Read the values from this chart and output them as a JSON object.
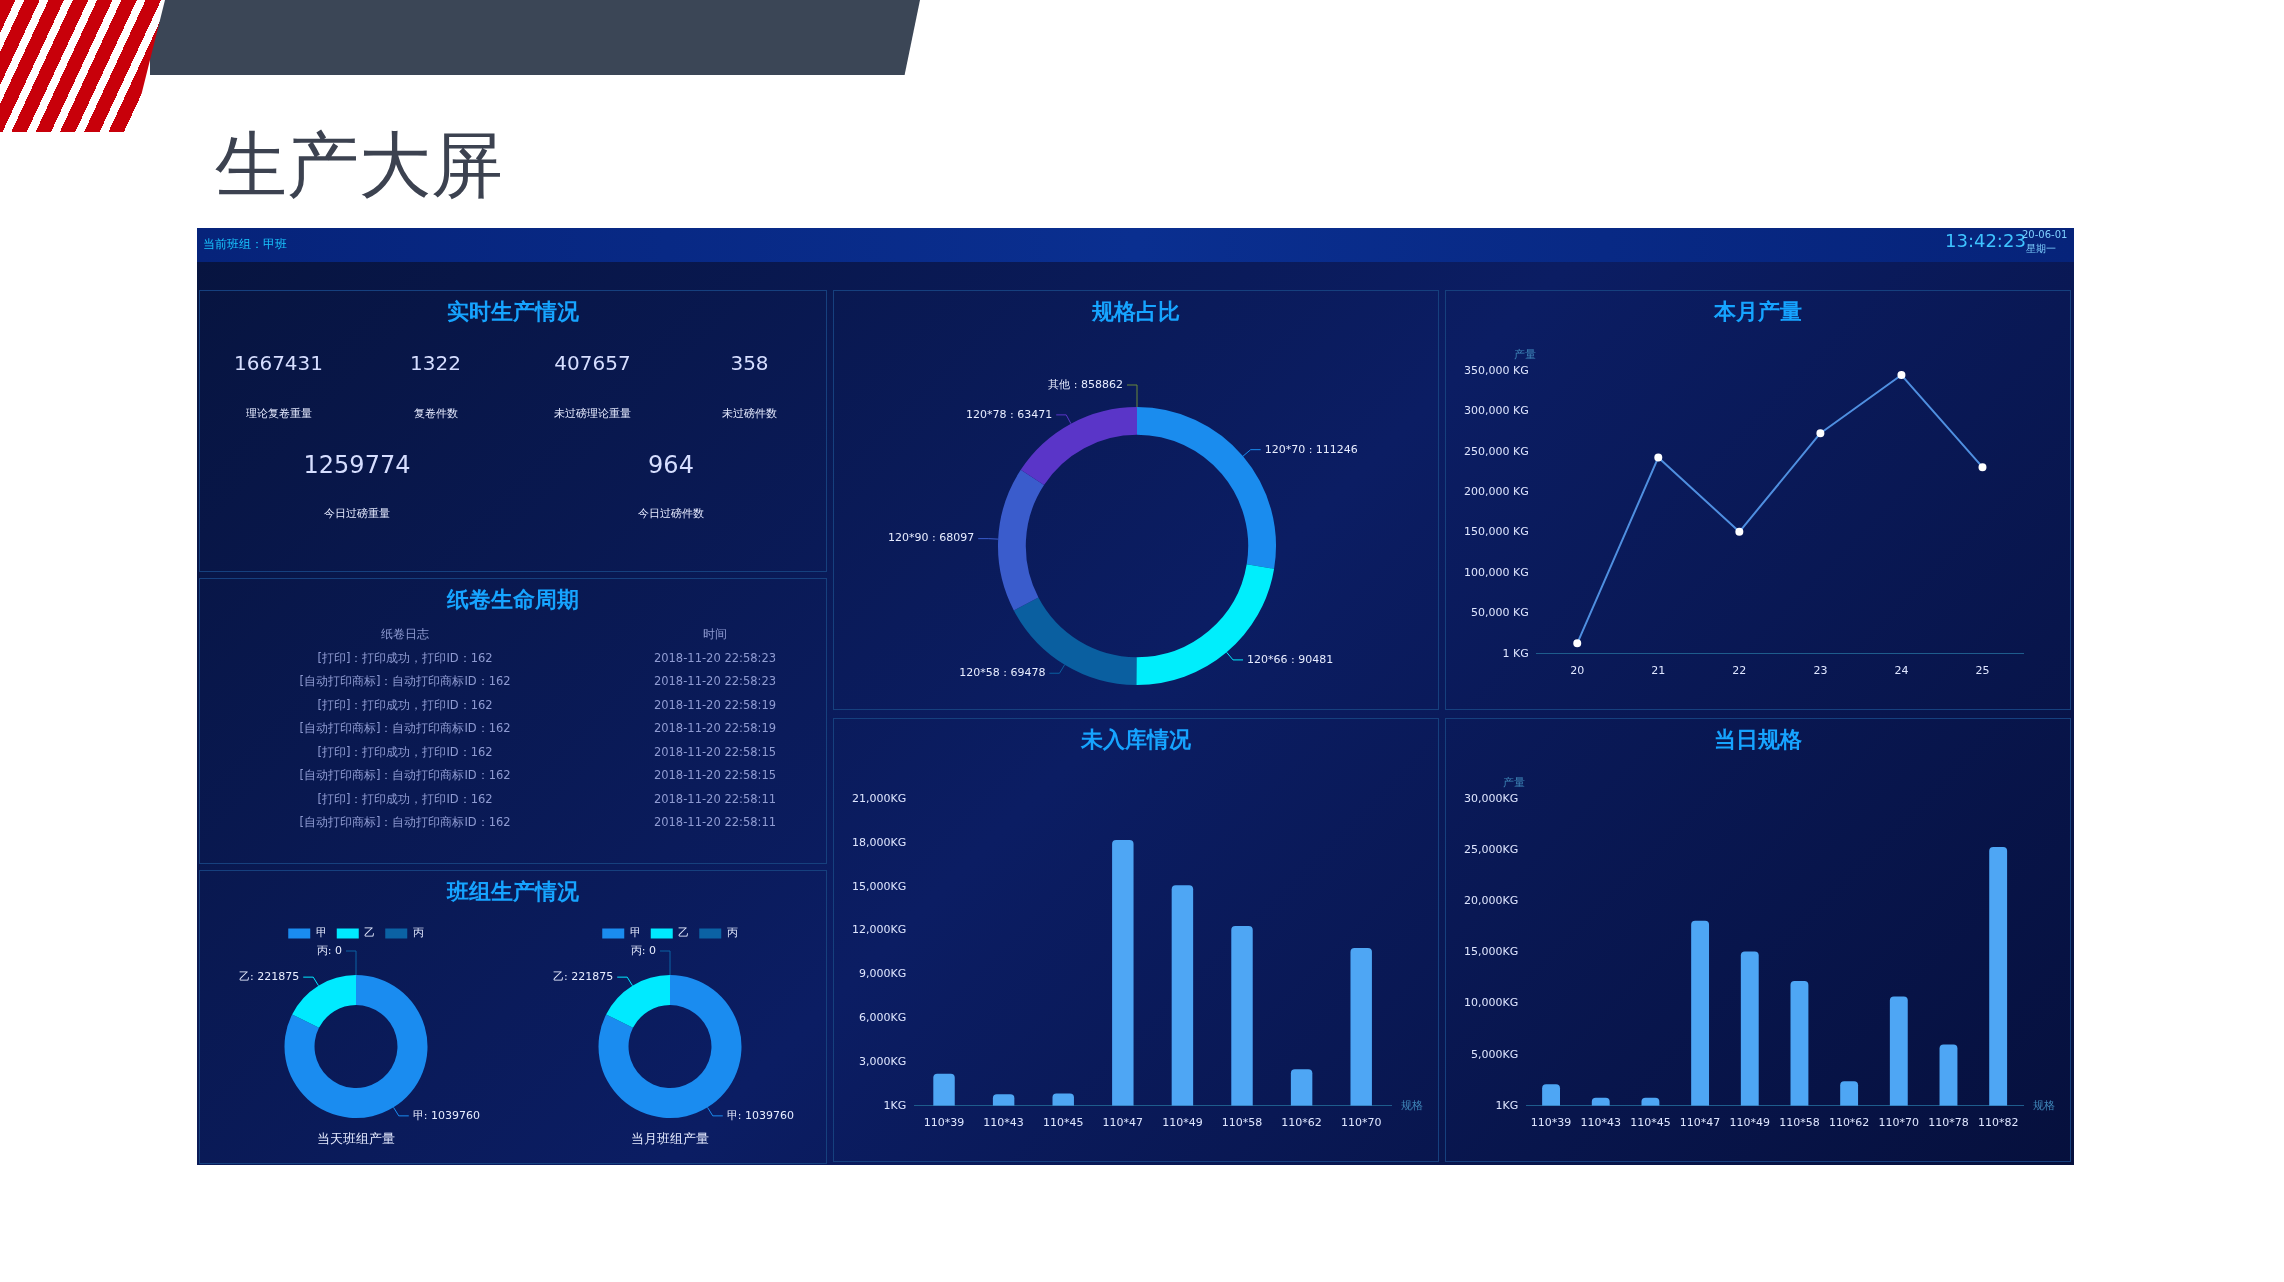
{
  "chart_data": [
    {
      "type": "other",
      "title": "生产大屏",
      "annotations": [
        "当前班组：甲班",
        "13:42:23",
        "20-06-01",
        "星期一"
      ]
    },
    {
      "type": "other",
      "title": "实时生产情况",
      "annotations": [
        "1667431",
        "理论复卷重量",
        "1322",
        "复卷件数",
        "407657",
        "未过磅理论重量",
        "358",
        "未过磅件数",
        "1259774",
        "今日过磅重量",
        "964",
        "今日过磅件数"
      ]
    },
    {
      "type": "other",
      "title": "纸卷生命周期",
      "annotations": [
        "纸卷日志",
        "时间",
        "[打印]：打印成功，打印ID：162",
        "2018-11-20 22:58:23",
        "[自动打印商标]：自动打印商标ID：162",
        "2018-11-20 22:58:23",
        "[打印]：打印成功，打印ID：162",
        "2018-11-20 22:58:19",
        "[自动打印商标]：自动打印商标ID：162",
        "2018-11-20 22:58:19",
        "[打印]：打印成功，打印ID：162",
        "2018-11-20 22:58:15",
        "[自动打印商标]：自动打印商标ID：162",
        "2018-11-20 22:58:15",
        "[打印]：打印成功，打印ID：162",
        "2018-11-20 22:58:11",
        "[自动打印商标]：自动打印商标ID：162",
        "2018-11-20 22:58:11"
      ]
    },
    {
      "type": "donut",
      "title": "当天班组产量",
      "annotations": [
        "班组生产情况"
      ],
      "categories": [
        "甲",
        "乙",
        "丙"
      ],
      "values": [
        1039760,
        221875,
        0
      ],
      "value_labels": [
        ": 1039760",
        ": 221875",
        ": 0"
      ],
      "colors": [
        "#1a8cf0",
        "#00eaff",
        "#0b62a4"
      ],
      "legend": "top"
    },
    {
      "type": "donut",
      "title": "当月班组产量",
      "categories": [
        "甲",
        "乙",
        "丙"
      ],
      "values": [
        1039760,
        221875,
        0
      ],
      "value_labels": [
        ": 1039760",
        ": 221875",
        ": 0"
      ],
      "colors": [
        "#1a8cf0",
        "#00eaff",
        "#0b62a4"
      ],
      "legend": "top"
    },
    {
      "type": "donut",
      "title": "规格占比",
      "annotations": [
        "其他 : 858862"
      ],
      "categories": [
        "120*70",
        "120*66",
        "120*58",
        "120*90",
        "120*78"
      ],
      "values": [
        111246,
        90481,
        69478,
        68097,
        63471
      ],
      "value_labels": [
        " : 111246",
        " : 90481",
        " : 69478",
        " : 68097",
        " : 63471"
      ],
      "colors": [
        "#1a8cee",
        "#00eefc",
        "#0a5fa0",
        "#3a5ccc",
        "#5a35c8"
      ]
    },
    {
      "type": "line",
      "title": "本月产量",
      "ylabel": "产量",
      "categories": [
        "20",
        "21",
        "22",
        "23",
        "24",
        "25"
      ],
      "values": [
        13000,
        243000,
        151000,
        273000,
        345000,
        231000
      ],
      "color": "#4f8fe0",
      "marker": "circle",
      "ylim": [
        1,
        350000
      ],
      "yticks": [
        {
          "value": 1,
          "label": "1 KG"
        },
        {
          "value": 50000,
          "label": "50,000 KG"
        },
        {
          "value": 100000,
          "label": "100,000 KG"
        },
        {
          "value": 150000,
          "label": "150,000 KG"
        },
        {
          "value": 200000,
          "label": "200,000 KG"
        },
        {
          "value": 250000,
          "label": "250,000 KG"
        },
        {
          "value": 300000,
          "label": "300,000 KG"
        },
        {
          "value": 350000,
          "label": "350,000 KG"
        }
      ]
    },
    {
      "type": "bar",
      "title": "未入库情况",
      "xlabel": "规格",
      "categories": [
        "110*39",
        "110*43",
        "110*45",
        "110*47",
        "110*49",
        "110*58",
        "110*62",
        "110*70"
      ],
      "values": [
        2200,
        800,
        850,
        18200,
        15100,
        12300,
        2500,
        10800
      ],
      "color": "#4ea6f4",
      "ylim": [
        1,
        21000
      ],
      "yticks": [
        {
          "value": 1,
          "label": "1KG"
        },
        {
          "value": 3000,
          "label": "3,000KG"
        },
        {
          "value": 6000,
          "label": "6,000KG"
        },
        {
          "value": 9000,
          "label": "9,000KG"
        },
        {
          "value": 12000,
          "label": "12,000KG"
        },
        {
          "value": 15000,
          "label": "15,000KG"
        },
        {
          "value": 18000,
          "label": "18,000KG"
        },
        {
          "value": 21000,
          "label": "21,000KG"
        }
      ]
    },
    {
      "type": "bar",
      "title": "当日规格",
      "xlabel": "规格",
      "ylabel": "产量",
      "categories": [
        "110*39",
        "110*43",
        "110*45",
        "110*47",
        "110*49",
        "110*58",
        "110*62",
        "110*70",
        "110*78",
        "110*82"
      ],
      "values": [
        2100,
        800,
        800,
        18100,
        15100,
        12200,
        2400,
        10700,
        6000,
        25300
      ],
      "color": "#4ea6f4",
      "ylim": [
        1,
        30000
      ],
      "yticks": [
        {
          "value": 1,
          "label": "1KG"
        },
        {
          "value": 5000,
          "label": "5,000KG"
        },
        {
          "value": 10000,
          "label": "10,000KG"
        },
        {
          "value": 15000,
          "label": "15,000KG"
        },
        {
          "value": 20000,
          "label": "20,000KG"
        },
        {
          "value": 25000,
          "label": "25,000KG"
        },
        {
          "value": 30000,
          "label": "30,000KG"
        }
      ]
    }
  ]
}
